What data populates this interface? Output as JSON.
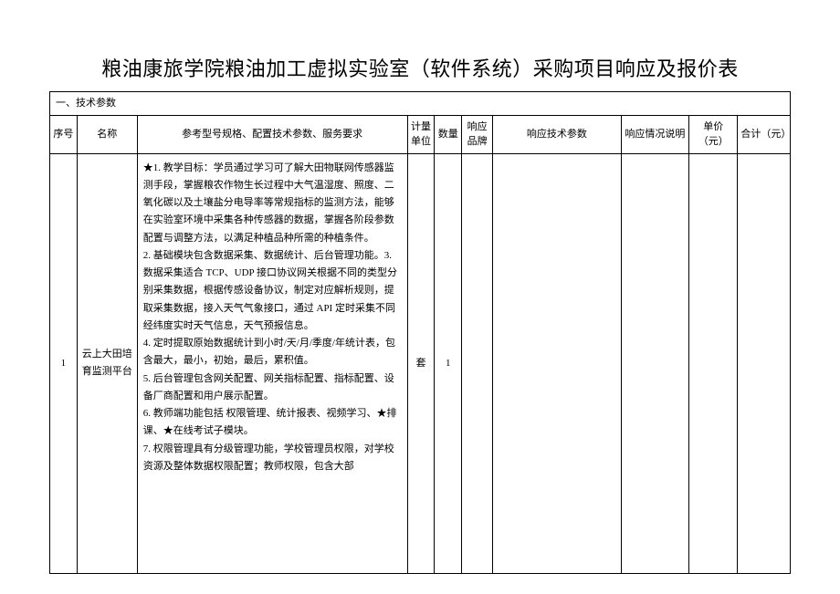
{
  "title": "粮油康旅学院粮油加工虚拟实验室（软件系统）采购项目响应及报价表",
  "section_label": "一、技术参数",
  "columns": {
    "c1": "序号",
    "c2": "名称",
    "c3": "参考型号规格、配置技术参数、服务要求",
    "c4": "计量单位",
    "c5": "数量",
    "c6": "响应品牌",
    "c7": "响应技术参数",
    "c8": "响应情况说明",
    "c9": "单价（元）",
    "c10": "合计（元）"
  },
  "row": {
    "seq": "1",
    "name": "云上大田培育监测平台",
    "desc": "★1. 教学目标：学员通过学习可了解大田物联网传感器监测手段，掌握粮农作物生长过程中大气温湿度、照度、二氧化碳以及土壤盐分电导率等常规指标的监测方法，能够在实验室环境中采集各种传感器的数据，掌握各阶段参数配置与调整方法，以满足种植品种所需的种植条件。\n2. 基础模块包含数据采集、数据统计、后台管理功能。3. 数据采集适合 TCP、UDP 接口协议网关根据不同的类型分别采集数据，根据传感设备协议，制定对应解析规则，提取采集数据，接入天气气象接口，通过 API 定时采集不同经纬度实时天气信息，天气预报信息。\n4. 定时提取原始数据统计到小时/天/月/季度/年统计表，包含最大，最小，初始，最后，累积值。\n5. 后台管理包含网关配置、网关指标配置、指标配置、设备厂商配置和用户展示配置。\n6. 教师端功能包括 权限管理、统计报表、视频学习、★排课、★在线考试子模块。\n7. 权限管理具有分级管理功能，学校管理员权限，对学校资源及整体数据权限配置；教师权限，包含大部",
    "unit": "套",
    "qty": "1",
    "brand": "",
    "resp_params": "",
    "resp_status": "",
    "unit_price": "",
    "total": ""
  },
  "col_widths": {
    "c1": "28",
    "c2": "62",
    "c3": "278",
    "c4": "28",
    "c5": "28",
    "c6": "32",
    "c7": "132",
    "c8": "70",
    "c9": "50",
    "c10": "54"
  }
}
